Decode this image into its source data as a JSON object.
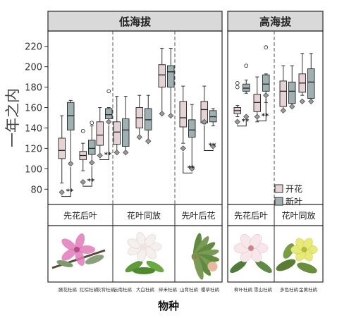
{
  "chart_data": {
    "type": "box",
    "ylabel": "一年之内",
    "xlabel": "物种",
    "ylim": [
      65,
      235
    ],
    "y_ticks": [
      80,
      100,
      120,
      140,
      160,
      180,
      200,
      220
    ],
    "grid": false,
    "legend": {
      "placement": "bottom-right of high-altitude panel",
      "entries": [
        {
          "name": "开花",
          "color": "#e6d3d6"
        },
        {
          "name": "新叶",
          "color": "#9fb0b3"
        }
      ]
    },
    "panels": [
      {
        "title": "低海拔",
        "groups": [
          {
            "label": "先花后叶",
            "species": [
              "腋花杜鹃",
              "红棕杜鹃",
              "灰背杜鹃"
            ]
          },
          {
            "label": "花叶同放",
            "species": [
              "云南杜鹃",
              "大白杜鹃",
              "碎米杜鹃"
            ]
          },
          {
            "label": "先叶后花",
            "species": [
              "山育杜鹃",
              "樱草杜鹃"
            ]
          }
        ],
        "species": [
          {
            "name": "腋花杜鹃",
            "flower": {
              "min": 86,
              "q1": 110,
              "median": 118,
              "q3": 130,
              "max": 152,
              "mean": 77,
              "outliers": []
            },
            "leaf": {
              "min": 106,
              "q1": 138,
              "median": 152,
              "q3": 165,
              "max": 167,
              "mean": 105,
              "outliers": []
            },
            "sig": "**"
          },
          {
            "name": "红棕杜鹃",
            "flower": {
              "min": 98,
              "q1": 109,
              "median": 113,
              "q3": 117,
              "max": 125,
              "mean": 87,
              "outliers": [
                137
              ]
            },
            "leaf": {
              "min": 106,
              "q1": 114,
              "median": 120,
              "q3": 128,
              "max": 142,
              "mean": 106,
              "outliers": [
                145
              ]
            },
            "sig": "**"
          },
          {
            "name": "灰背杜鹃",
            "flower": {
              "min": 113,
              "q1": 123,
              "median": 133,
              "q3": 146,
              "max": 160,
              "mean": 113,
              "outliers": []
            },
            "leaf": {
              "min": 146,
              "q1": 149,
              "median": 153,
              "q3": 159,
              "max": 160,
              "mean": 146,
              "outliers": [
                176
              ]
            },
            "sig": "**"
          },
          {
            "name": "云南杜鹃",
            "flower": {
              "min": 116,
              "q1": 124,
              "median": 136,
              "q3": 146,
              "max": 171,
              "mean": 116,
              "outliers": []
            },
            "leaf": {
              "min": 116,
              "q1": 122,
              "median": 138,
              "q3": 149,
              "max": 171,
              "mean": 116,
              "outliers": []
            },
            "sig": ""
          },
          {
            "name": "大白杜鹃",
            "flower": {
              "min": 132,
              "q1": 140,
              "median": 150,
              "q3": 160,
              "max": 172,
              "mean": 131,
              "outliers": []
            },
            "leaf": {
              "min": 128,
              "q1": 138,
              "median": 148,
              "q3": 159,
              "max": 172,
              "mean": 127,
              "outliers": []
            },
            "sig": ""
          },
          {
            "name": "碎米杜鹃",
            "flower": {
              "min": 154,
              "q1": 180,
              "median": 192,
              "q3": 202,
              "max": 218,
              "mean": 154,
              "outliers": []
            },
            "leaf": {
              "min": 152,
              "q1": 180,
              "median": 195,
              "q3": 201,
              "max": 218,
              "mean": 152,
              "outliers": []
            },
            "sig": ""
          },
          {
            "name": "山育杜鹃",
            "flower": {
              "min": 125,
              "q1": 141,
              "median": 150,
              "q3": 166,
              "max": 181,
              "mean": 120,
              "outliers": []
            },
            "leaf": {
              "min": 102,
              "q1": 131,
              "median": 138,
              "q3": 148,
              "max": 163,
              "mean": 100,
              "outliers": []
            },
            "sig": "**"
          },
          {
            "name": "樱草杜鹃",
            "flower": {
              "min": 144,
              "q1": 145,
              "median": 158,
              "q3": 166,
              "max": 181,
              "mean": 146,
              "outliers": []
            },
            "leaf": {
              "min": 142,
              "q1": 146,
              "median": 151,
              "q3": 157,
              "max": 159,
              "mean": 122,
              "outliers": []
            },
            "sig": "**"
          }
        ]
      },
      {
        "title": "高海拔",
        "groups": [
          {
            "label": "先花后叶",
            "species": [
              "柳叶杜鹃",
              "雪山杜鹃"
            ]
          },
          {
            "label": "花叶同放",
            "species": [
              "多色杜鹃",
              "金黄杜鹃"
            ]
          }
        ],
        "species": [
          {
            "name": "柳叶杜鹃",
            "flower": {
              "min": 151,
              "q1": 154,
              "median": 157,
              "q3": 160,
              "max": 162,
              "mean": 146,
              "outliers": [
                180,
                184
              ]
            },
            "leaf": {
              "min": 174,
              "q1": 176,
              "median": 179,
              "q3": 183,
              "max": 187,
              "mean": 151,
              "outliers": [
                201
              ]
            },
            "sig": "**"
          },
          {
            "name": "雪山杜鹃",
            "flower": {
              "min": 146,
              "q1": 156,
              "median": 165,
              "q3": 173,
              "max": 190,
              "mean": 151,
              "outliers": []
            },
            "leaf": {
              "min": 165,
              "q1": 176,
              "median": 183,
              "q3": 192,
              "max": 193,
              "mean": 172,
              "outliers": [
                219
              ]
            },
            "sig": "**"
          },
          {
            "name": "多色杜鹃",
            "flower": {
              "min": 158,
              "q1": 161,
              "median": 176,
              "q3": 186,
              "max": 201,
              "mean": 157,
              "outliers": []
            },
            "leaf": {
              "min": 160,
              "q1": 164,
              "median": 176,
              "q3": 185,
              "max": 201,
              "mean": 161,
              "outliers": []
            },
            "sig": ""
          },
          {
            "name": "金黄杜鹃",
            "flower": {
              "min": 172,
              "q1": 175,
              "median": 184,
              "q3": 193,
              "max": 213,
              "mean": 166,
              "outliers": []
            },
            "leaf": {
              "min": 166,
              "q1": 169,
              "median": 185,
              "q3": 198,
              "max": 213,
              "mean": 166,
              "outliers": []
            },
            "sig": ""
          }
        ]
      }
    ]
  },
  "photos": [
    {
      "panel": 0,
      "group": 0,
      "name": "pink-rhododendron-photo-icon"
    },
    {
      "panel": 0,
      "group": 1,
      "name": "white-rhododendron-photo-icon"
    },
    {
      "panel": 0,
      "group": 2,
      "name": "green-leaves-photo-icon"
    },
    {
      "panel": 1,
      "group": 0,
      "name": "pale-pink-rhododendron-photo-icon"
    },
    {
      "panel": 1,
      "group": 1,
      "name": "yellow-rhododendron-photo-icon"
    }
  ],
  "colors": {
    "flower_fill": "#e6d3d6",
    "leaf_fill": "#9fb0b3",
    "strip_fill": "#d9d9d9",
    "frame": "#2b2b2b"
  }
}
